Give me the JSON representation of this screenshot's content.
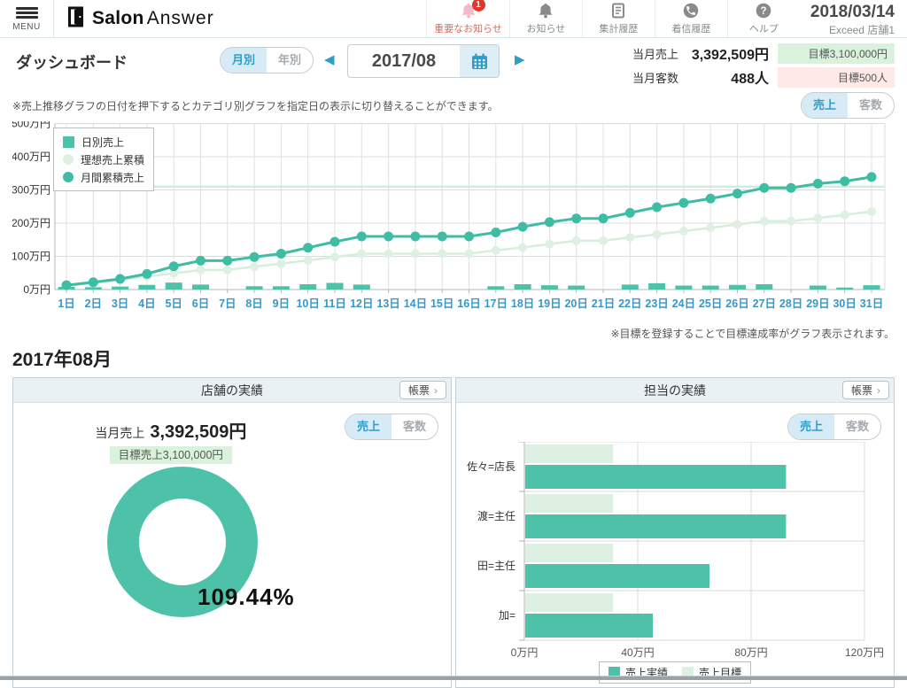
{
  "colors": {
    "teal": "#4dc2a9",
    "teal_line": "#3fbda4",
    "light_green": "#ddf0e1",
    "light_green_line": "#d7eedd",
    "target_line": "#c6ecd5",
    "accent_blue": "#2e9dc9",
    "accent_blue_bg": "#d7ebf6",
    "day_label_blue": "#3897c6",
    "badge_green_bg": "#d9f2dc",
    "badge_pink_bg": "#fde9e5",
    "notice_red": "#e2362a",
    "notice_pink_text": "#dd6b5e"
  },
  "header": {
    "menu_label": "MENU",
    "brand": {
      "bold": "Salon",
      "light": "Answer"
    },
    "nav": [
      {
        "label": "重要なお知らせ",
        "icon": "bell-icon",
        "badge": "1"
      },
      {
        "label": "お知らせ",
        "icon": "bell-icon"
      },
      {
        "label": "集計履歴",
        "icon": "document-icon"
      },
      {
        "label": "着信履歴",
        "icon": "phone-icon"
      },
      {
        "label": "ヘルプ",
        "icon": "question-icon"
      }
    ],
    "current_date": "2018/03/14",
    "store_name": "Exceed 店舗1"
  },
  "toolbar": {
    "page_title": "ダッシュボード",
    "period_toggle": {
      "options": [
        "月別",
        "年別"
      ],
      "selected": "月別"
    },
    "date_picker": {
      "value": "2017/08",
      "prev": "◀",
      "next": "▶"
    },
    "summary": [
      {
        "label": "当月売上",
        "value": "3,392,509円",
        "target": "目標3,100,000円",
        "target_style": "green"
      },
      {
        "label": "当月客数",
        "value": "488人",
        "target": "目標500人",
        "target_style": "pink"
      }
    ]
  },
  "toggles": {
    "sales": "売上",
    "customers": "客数"
  },
  "notes": {
    "above_chart": "※売上推移グラフの日付を押下するとカテゴリ別グラフを指定日の表示に切り替えることができます。",
    "below_chart": "※目標を登録することで目標達成率がグラフ表示されます。"
  },
  "chart_data": [
    {
      "id": "sales-trend",
      "type": "bar+line",
      "unit": "万円",
      "categories": [
        "1日",
        "2日",
        "3日",
        "4日",
        "5日",
        "6日",
        "7日",
        "8日",
        "9日",
        "10日",
        "11日",
        "12日",
        "13日",
        "14日",
        "15日",
        "16日",
        "17日",
        "18日",
        "19日",
        "20日",
        "21日",
        "22日",
        "23日",
        "24日",
        "25日",
        "26日",
        "27日",
        "28日",
        "29日",
        "30日",
        "31日"
      ],
      "series": [
        {
          "name": "日別売上",
          "type": "bar",
          "values": [
            8,
            7,
            9,
            14,
            21,
            15,
            0,
            10,
            10,
            16,
            20,
            15,
            0,
            0,
            0,
            0,
            10,
            16,
            13,
            12,
            0,
            15,
            19,
            12,
            12,
            14,
            16,
            0,
            12,
            6,
            13
          ]
        },
        {
          "name": "理想売上累積",
          "type": "line",
          "values": [
            10,
            20,
            29,
            39,
            49,
            59,
            59,
            69,
            78,
            88,
            98,
            108,
            108,
            108,
            108,
            108,
            118,
            127,
            137,
            147,
            147,
            157,
            166,
            176,
            186,
            196,
            206,
            206,
            215,
            225,
            235
          ]
        },
        {
          "name": "月間累積売上",
          "type": "line",
          "values": [
            13,
            22,
            32,
            47,
            70,
            87,
            87,
            98,
            108,
            126,
            144,
            160,
            160,
            160,
            160,
            160,
            172,
            189,
            203,
            214,
            214,
            231,
            248,
            261,
            274,
            289,
            306,
            306,
            319,
            326,
            339
          ]
        }
      ],
      "target_value": 310,
      "ylim": [
        0,
        500
      ],
      "yticks": [
        "0万円",
        "100万円",
        "200万円",
        "300万円",
        "400万円",
        "500万円"
      ],
      "legend_position": "top-left"
    },
    {
      "id": "store-achievement",
      "type": "donut",
      "value_pct": 109.44,
      "label": "109.44%"
    },
    {
      "id": "staff-performance",
      "type": "bar-horizontal",
      "unit": "万円",
      "categories": [
        "佐々=店長",
        "渡=主任",
        "田=主任",
        "加="
      ],
      "series": [
        {
          "name": "売上実績",
          "values": [
            92,
            92,
            65,
            45
          ]
        },
        {
          "name": "売上目標",
          "values": [
            31,
            31,
            31,
            31
          ]
        }
      ],
      "xlim": [
        0,
        120
      ],
      "xticks": [
        "0万円",
        "40万円",
        "80万円",
        "120万円"
      ],
      "xtick_values": [
        0,
        40,
        80,
        120
      ],
      "legend_position": "bottom"
    }
  ],
  "monthly_section": {
    "heading": "2017年08月",
    "store_card": {
      "title": "店舗の実績",
      "report_button": "帳票",
      "report_chevron": "›",
      "sales_label": "当月売上",
      "sales_value": "3,392,509円",
      "target_badge": "目標売上3,100,000円"
    },
    "staff_card": {
      "title": "担当の実績",
      "report_button": "帳票",
      "report_chevron": "›"
    }
  }
}
